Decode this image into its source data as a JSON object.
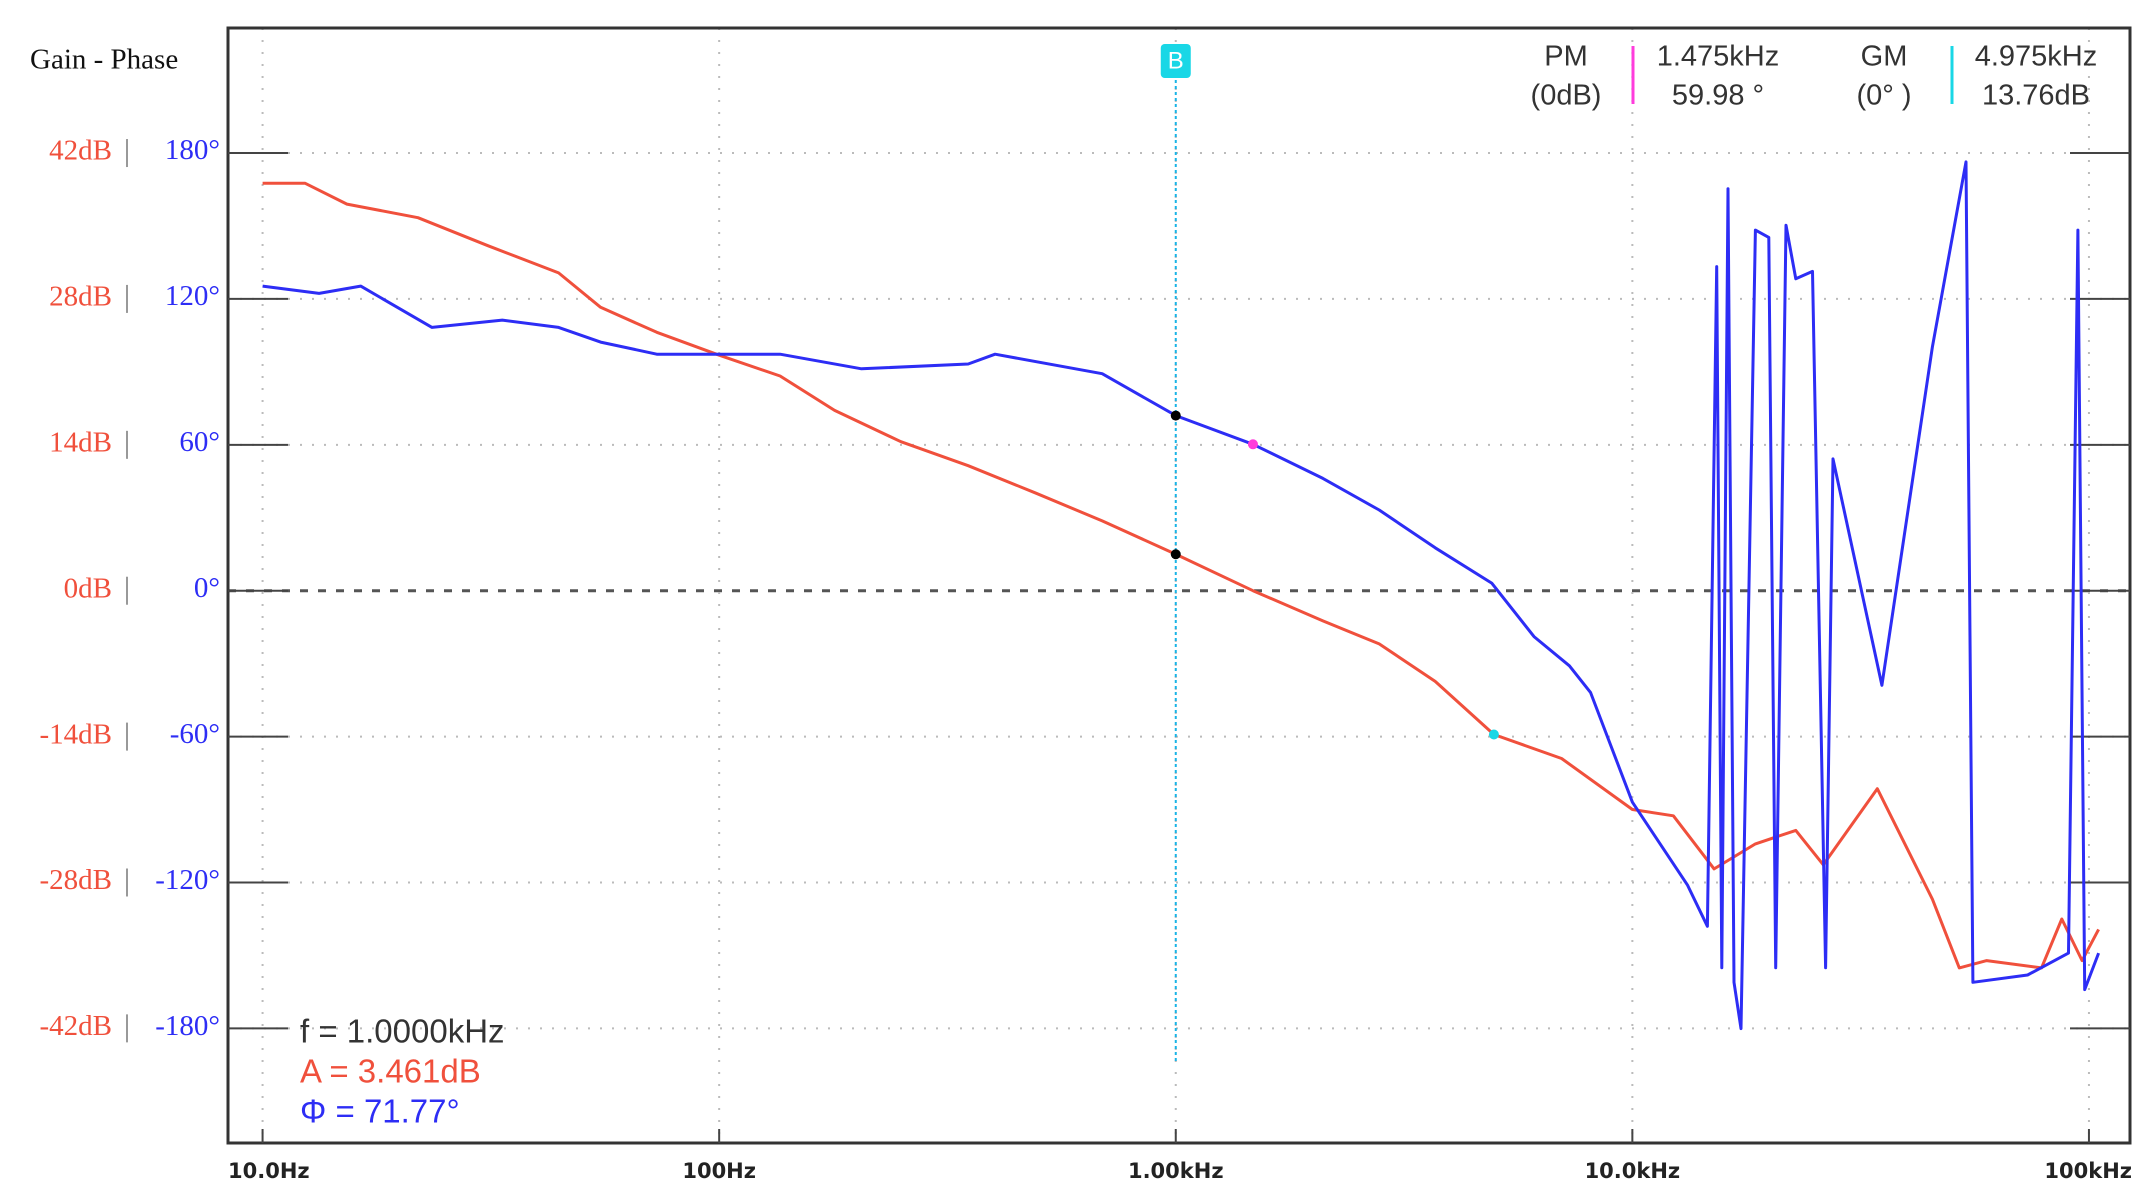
{
  "chart_data": {
    "type": "line",
    "title": "Gain - Phase",
    "log_x": true,
    "grid": true,
    "xlim": [
      8.4,
      123000
    ],
    "xticks": [
      {
        "value": 10,
        "label": "10.0Hz"
      },
      {
        "value": 100,
        "label": "100Hz"
      },
      {
        "value": 1000,
        "label": "1.00kHz"
      },
      {
        "value": 10000,
        "label": "10.0kHz"
      },
      {
        "value": 100000,
        "label": "100kHz"
      }
    ],
    "ylim": [
      -53,
      54
    ],
    "yticks": [
      {
        "value": 42,
        "label": "42dB"
      },
      {
        "value": 28,
        "label": "28dB"
      },
      {
        "value": 14,
        "label": "14dB"
      },
      {
        "value": 0,
        "label": "0dB"
      },
      {
        "value": -14,
        "label": "-14dB"
      },
      {
        "value": -28,
        "label": "-28dB"
      },
      {
        "value": -42,
        "label": "-42dB"
      }
    ],
    "y2lim": [
      -227,
      231
    ],
    "y2ticks": [
      {
        "value": 180,
        "label": "180°"
      },
      {
        "value": 120,
        "label": "120°"
      },
      {
        "value": 60,
        "label": "60°"
      },
      {
        "value": 0,
        "label": "0°"
      },
      {
        "value": -60,
        "label": "-60°"
      },
      {
        "value": -120,
        "label": "-120°"
      },
      {
        "value": -180,
        "label": "-180°"
      }
    ],
    "series": [
      {
        "color": "#f0503c",
        "x": [
          10,
          12.4,
          15.3,
          21.9,
          31.2,
          44.5,
          55,
          73,
          100,
          136,
          179,
          250,
          351,
          492,
          690,
          1000,
          1476,
          2100,
          2790,
          3700,
          4975,
          7000,
          10000,
          12300,
          15100,
          18600,
          22800,
          26200,
          34400,
          45400,
          52000,
          59700,
          78700,
          87200,
          96600,
          105000
        ],
        "values": [
          39.1,
          39.1,
          37.1,
          35.8,
          33.1,
          30.5,
          27.2,
          24.8,
          22.6,
          20.6,
          17.3,
          14.3,
          12.0,
          9.4,
          6.7,
          3.5,
          0,
          -2.9,
          -5.1,
          -8.7,
          -13.8,
          -16.1,
          -21,
          -21.6,
          -26.7,
          -24.3,
          -23,
          -26.3,
          -19,
          -29.6,
          -36.2,
          -35.5,
          -36.2,
          -31.5,
          -35.5,
          -32.5
        ]
      },
      {
        "color": "#2d2df5",
        "axis": "y2",
        "x": [
          10,
          13.3,
          16.4,
          23.5,
          33.5,
          44.5,
          55,
          73,
          100,
          136,
          205,
          351,
          402,
          690,
          1000,
          1476,
          2100,
          2790,
          3700,
          4920,
          6090,
          7280,
          8100,
          10000,
          13200,
          14600,
          15300,
          15700,
          16200,
          16700,
          17300,
          18600,
          19900,
          20600,
          21700,
          22800,
          24800,
          26500,
          27500,
          35200,
          45400,
          53800,
          55700,
          73400,
          90200,
          94600,
          97900,
          105000
        ],
        "values": [
          125,
          122,
          125,
          108,
          111,
          108,
          102,
          97,
          97,
          97,
          91,
          93,
          97,
          89,
          71.8,
          60,
          46,
          33,
          17.5,
          3,
          -19,
          -31,
          -42,
          -87,
          -121,
          -138,
          133,
          -155,
          165,
          -161,
          -180,
          148,
          145,
          -155,
          150,
          128,
          131,
          -155,
          54,
          -39,
          100,
          176,
          -161,
          -158,
          -149,
          148,
          -164,
          -149
        ]
      }
    ],
    "cursor": {
      "label": "B",
      "x": 1000
    },
    "readout": [
      "f = 1.0000kHz",
      "A = 3.461dB",
      "Φ = 71.77°"
    ],
    "pm": {
      "label": "PM",
      "condition": "(0dB)",
      "frequency": "1.475kHz",
      "margin": "59.98 °",
      "color": "#ff3cdc"
    },
    "gm": {
      "label": "GM",
      "condition": "(0° )",
      "frequency": "4.975kHz",
      "margin": "13.76dB",
      "color": "#19d7e6"
    }
  }
}
